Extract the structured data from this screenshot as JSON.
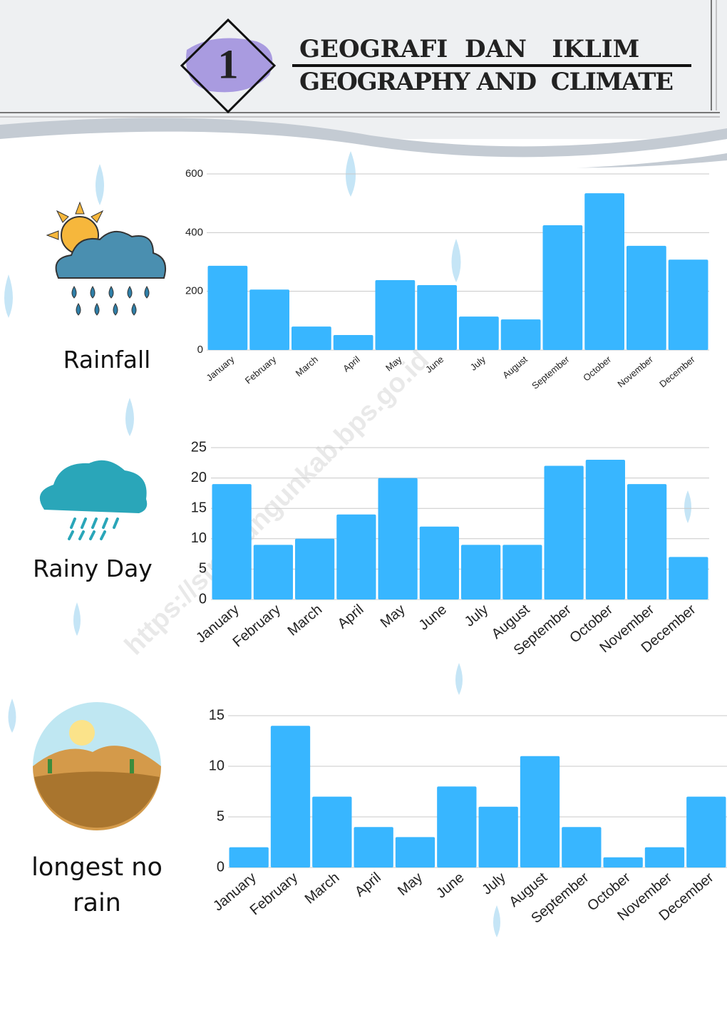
{
  "header": {
    "number": "1",
    "title": "GEOGRAFI  DAN   IKLIM",
    "subtitle": "GEOGRAPHY AND  CLIMATE"
  },
  "watermark": "https://simalungunkab.bps.go.id",
  "chart_data": [
    {
      "type": "bar",
      "title": "Rainfall",
      "categories": [
        "January",
        "February",
        "March",
        "April",
        "May",
        "June",
        "July",
        "August",
        "September",
        "October",
        "November",
        "December"
      ],
      "values": [
        287,
        206,
        80,
        51,
        238,
        221,
        114,
        104,
        425,
        534,
        355,
        308
      ],
      "color": "#38b6ff",
      "ylim": [
        0,
        600
      ],
      "yticks": [
        0,
        200,
        400,
        600
      ],
      "grid": true
    },
    {
      "type": "bar",
      "title": "Rainy Day",
      "categories": [
        "January",
        "February",
        "March",
        "April",
        "May",
        "June",
        "July",
        "August",
        "September",
        "October",
        "November",
        "December"
      ],
      "values": [
        19,
        9,
        10,
        14,
        20,
        12,
        9,
        9,
        22,
        23,
        19,
        7
      ],
      "color": "#38b6ff",
      "ylim": [
        0,
        25
      ],
      "yticks": [
        0,
        5,
        10,
        15,
        20,
        25
      ],
      "grid": true
    },
    {
      "type": "bar",
      "title": "longest no rain",
      "categories": [
        "January",
        "February",
        "March",
        "April",
        "May",
        "June",
        "July",
        "August",
        "September",
        "October",
        "November",
        "December"
      ],
      "values": [
        2,
        14,
        7,
        4,
        3,
        8,
        6,
        11,
        4,
        1,
        2,
        7
      ],
      "color": "#38b6ff",
      "ylim": [
        0,
        15
      ],
      "yticks": [
        0,
        5,
        10,
        15
      ],
      "grid": true
    }
  ]
}
